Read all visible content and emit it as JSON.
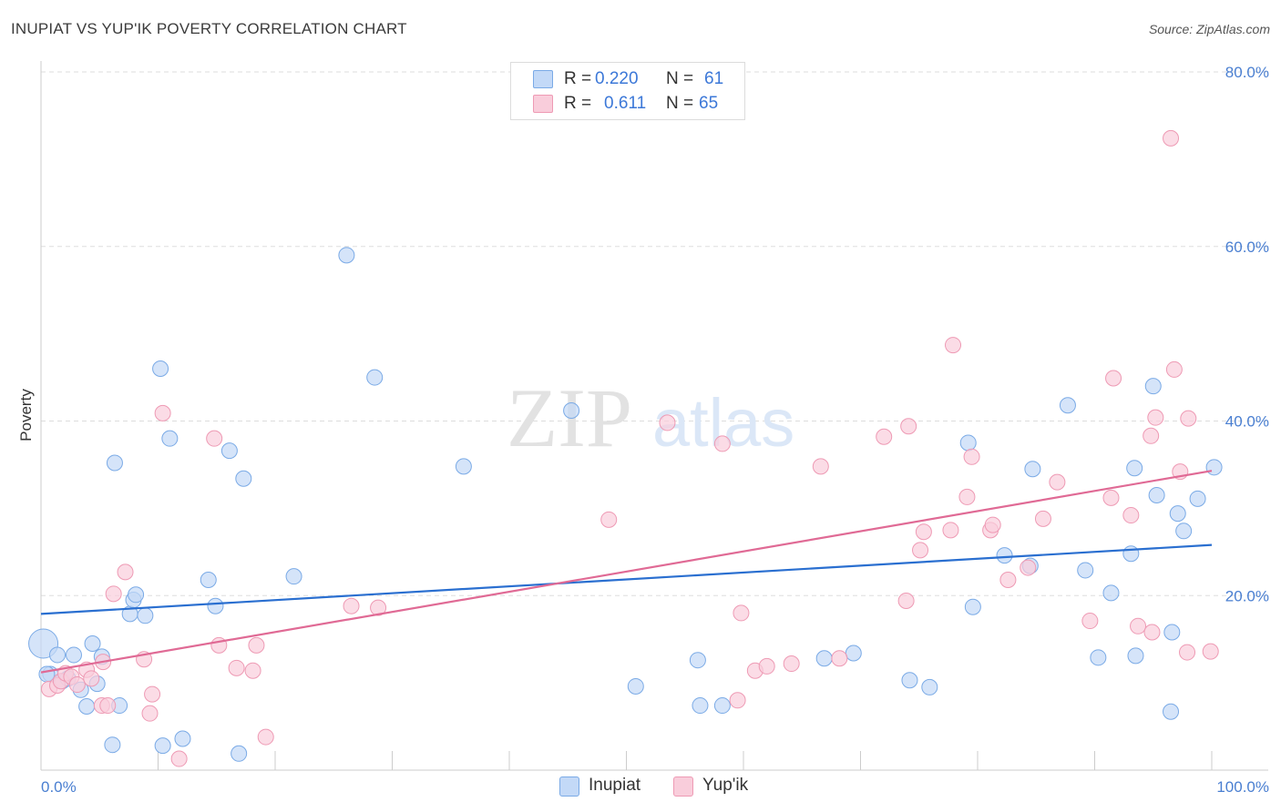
{
  "header": {
    "title": "INUPIAT VS YUP'IK POVERTY CORRELATION CHART",
    "source": "Source: ZipAtlas.com"
  },
  "watermark": {
    "left": "ZIP",
    "right": "atlas"
  },
  "legend": {
    "rows": [
      {
        "r_label": "R =",
        "r_value": "0.220",
        "n_label": "N =",
        "n_value": "61",
        "color": "#a9c9f4"
      },
      {
        "r_label": "R =",
        "r_value": "0.611",
        "n_label": "N =",
        "n_value": "65",
        "color": "#f7b6c9"
      }
    ]
  },
  "bottom_legend": [
    {
      "label": "Inupiat",
      "color": "#a9c9f4"
    },
    {
      "label": "Yup'ik",
      "color": "#f7b6c9"
    }
  ],
  "colors": {
    "inupiat_fill": "#c3d9f7",
    "inupiat_stroke": "#7aaae6",
    "inupiat_line": "#2a6fd0",
    "yupik_fill": "#f9cddb",
    "yupik_stroke": "#ee9ab4",
    "yupik_line": "#e06a95",
    "tick_text": "#4a7fd1",
    "grid": "#dddddd"
  },
  "chart_data": {
    "type": "scatter",
    "title": "INUPIAT VS YUP'IK POVERTY CORRELATION CHART",
    "xlabel": "",
    "ylabel": "Poverty",
    "xlim": [
      0,
      100
    ],
    "ylim": [
      0,
      80
    ],
    "x_tick_labels": [
      "0.0%",
      "100.0%"
    ],
    "y_ticks": [
      20,
      40,
      60,
      80
    ],
    "y_tick_labels": [
      "20.0%",
      "40.0%",
      "60.0%",
      "80.0%"
    ],
    "grid": true,
    "series": [
      {
        "name": "Inupiat",
        "R": 0.22,
        "N": 61,
        "trend": {
          "x": [
            0,
            100
          ],
          "y": [
            17.9,
            25.8
          ]
        },
        "points": [
          [
            0.2,
            14.5,
            "big"
          ],
          [
            0.8,
            11.0
          ],
          [
            1.4,
            13.2
          ],
          [
            1.8,
            10.2
          ],
          [
            2.3,
            10.5
          ],
          [
            2.8,
            13.2
          ],
          [
            3.4,
            9.2
          ],
          [
            3.9,
            7.3
          ],
          [
            4.4,
            14.5
          ],
          [
            4.8,
            9.9
          ],
          [
            5.2,
            13.0
          ],
          [
            6.1,
            2.9
          ],
          [
            6.3,
            35.2
          ],
          [
            6.7,
            7.4
          ],
          [
            7.6,
            17.9
          ],
          [
            7.9,
            19.5
          ],
          [
            8.1,
            20.1
          ],
          [
            8.9,
            17.7
          ],
          [
            10.2,
            46.0
          ],
          [
            10.4,
            2.8
          ],
          [
            11.0,
            38.0
          ],
          [
            12.1,
            3.6
          ],
          [
            14.3,
            21.8
          ],
          [
            14.9,
            18.8
          ],
          [
            16.1,
            36.6
          ],
          [
            16.9,
            1.9
          ],
          [
            17.3,
            33.4
          ],
          [
            21.6,
            22.2
          ],
          [
            26.1,
            59.0
          ],
          [
            28.5,
            45.0
          ],
          [
            36.1,
            34.8
          ],
          [
            45.3,
            41.2
          ],
          [
            50.8,
            9.6
          ],
          [
            56.1,
            12.6
          ],
          [
            56.3,
            7.4
          ],
          [
            58.2,
            7.4
          ],
          [
            66.9,
            12.8
          ],
          [
            69.4,
            13.4
          ],
          [
            74.2,
            10.3
          ],
          [
            75.9,
            9.5
          ],
          [
            79.2,
            37.5
          ],
          [
            79.6,
            18.7
          ],
          [
            82.3,
            24.6
          ],
          [
            84.5,
            23.4
          ],
          [
            84.7,
            34.5
          ],
          [
            87.7,
            41.8
          ],
          [
            89.2,
            22.9
          ],
          [
            90.3,
            12.9
          ],
          [
            91.4,
            20.3
          ],
          [
            93.1,
            24.8
          ],
          [
            93.4,
            34.6
          ],
          [
            93.5,
            13.1
          ],
          [
            95.0,
            44.0
          ],
          [
            95.3,
            31.5
          ],
          [
            96.5,
            6.7
          ],
          [
            96.6,
            15.8
          ],
          [
            97.1,
            29.4
          ],
          [
            97.6,
            27.4
          ],
          [
            98.8,
            31.1
          ],
          [
            100.2,
            34.7
          ],
          [
            0.5,
            11.0
          ]
        ]
      },
      {
        "name": "Yup'ik",
        "R": 0.611,
        "N": 65,
        "trend": {
          "x": [
            0,
            100
          ],
          "y": [
            11.2,
            34.3
          ]
        },
        "points": [
          [
            0.7,
            9.3
          ],
          [
            1.4,
            9.7
          ],
          [
            1.7,
            10.2
          ],
          [
            2.1,
            11.1
          ],
          [
            2.6,
            10.7
          ],
          [
            3.1,
            9.8
          ],
          [
            3.9,
            11.5
          ],
          [
            4.3,
            10.5
          ],
          [
            5.2,
            7.4
          ],
          [
            5.3,
            12.4
          ],
          [
            5.7,
            7.4
          ],
          [
            6.2,
            20.2
          ],
          [
            7.2,
            22.7
          ],
          [
            8.8,
            12.7
          ],
          [
            9.3,
            6.5
          ],
          [
            9.5,
            8.7
          ],
          [
            10.4,
            40.9
          ],
          [
            11.8,
            1.3
          ],
          [
            14.8,
            38.0
          ],
          [
            15.2,
            14.3
          ],
          [
            16.7,
            11.7
          ],
          [
            18.1,
            11.4
          ],
          [
            18.4,
            14.3
          ],
          [
            19.2,
            3.8
          ],
          [
            26.5,
            18.8
          ],
          [
            28.8,
            18.6
          ],
          [
            48.5,
            28.7
          ],
          [
            53.5,
            39.8
          ],
          [
            58.2,
            37.4
          ],
          [
            59.5,
            8.0
          ],
          [
            59.8,
            18.0
          ],
          [
            61.0,
            11.4
          ],
          [
            62.0,
            11.9
          ],
          [
            64.1,
            12.2
          ],
          [
            66.6,
            34.8
          ],
          [
            68.2,
            12.8
          ],
          [
            72.0,
            38.2
          ],
          [
            73.9,
            19.4
          ],
          [
            74.1,
            39.4
          ],
          [
            75.1,
            25.2
          ],
          [
            75.4,
            27.3
          ],
          [
            77.7,
            27.5
          ],
          [
            77.9,
            48.7
          ],
          [
            79.1,
            31.3
          ],
          [
            79.5,
            35.9
          ],
          [
            81.1,
            27.5
          ],
          [
            81.3,
            28.1
          ],
          [
            82.6,
            21.8
          ],
          [
            84.3,
            23.2
          ],
          [
            85.6,
            28.8
          ],
          [
            86.8,
            33.0
          ],
          [
            89.6,
            17.1
          ],
          [
            91.4,
            31.2
          ],
          [
            91.6,
            44.9
          ],
          [
            93.1,
            29.2
          ],
          [
            93.7,
            16.5
          ],
          [
            94.8,
            38.3
          ],
          [
            94.9,
            15.8
          ],
          [
            95.2,
            40.4
          ],
          [
            96.5,
            72.4
          ],
          [
            96.8,
            45.9
          ],
          [
            97.3,
            34.2
          ],
          [
            97.9,
            13.5
          ],
          [
            98.0,
            40.3
          ],
          [
            99.9,
            13.6
          ]
        ]
      }
    ]
  }
}
